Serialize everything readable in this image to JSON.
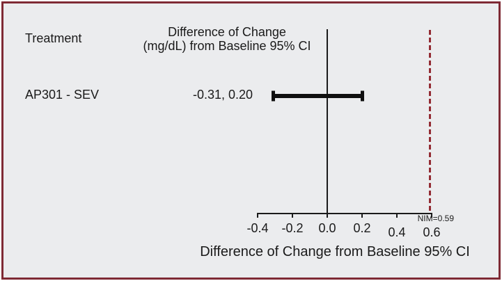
{
  "figure": {
    "treatment_header": "Treatment",
    "estimate_header_line1": "Difference of Change",
    "estimate_header_line2": "(mg/dL) from Baseline 95% CI",
    "colors": {
      "border": "#7f2a34",
      "background": "#ebecee",
      "nim_line": "#932b33",
      "axis_and_text": "#1a1a1a",
      "ci_bar": "#0f0f0f"
    }
  },
  "chart_data": {
    "type": "forest",
    "columns": [
      "Treatment",
      "Difference of Change (mg/dL) from Baseline 95% CI"
    ],
    "rows": [
      {
        "label": "AP301 - SEV",
        "ci_text": "-0.31, 0.20",
        "ci_lower": -0.31,
        "ci_upper": 0.2
      }
    ],
    "xlabel": "Difference of Change from Baseline 95% CI",
    "xlim": [
      -0.4,
      0.6
    ],
    "xticks": [
      -0.4,
      -0.2,
      0.0,
      0.2,
      0.4,
      0.6
    ],
    "xtick_labels": [
      "-0.4",
      "-0.2",
      "0.0",
      "0.2",
      "0.4",
      "0.6"
    ],
    "reference_line": 0.0,
    "nim_value": 0.59,
    "nim_label": "NIM=0.59",
    "grid": false,
    "legend": false
  }
}
